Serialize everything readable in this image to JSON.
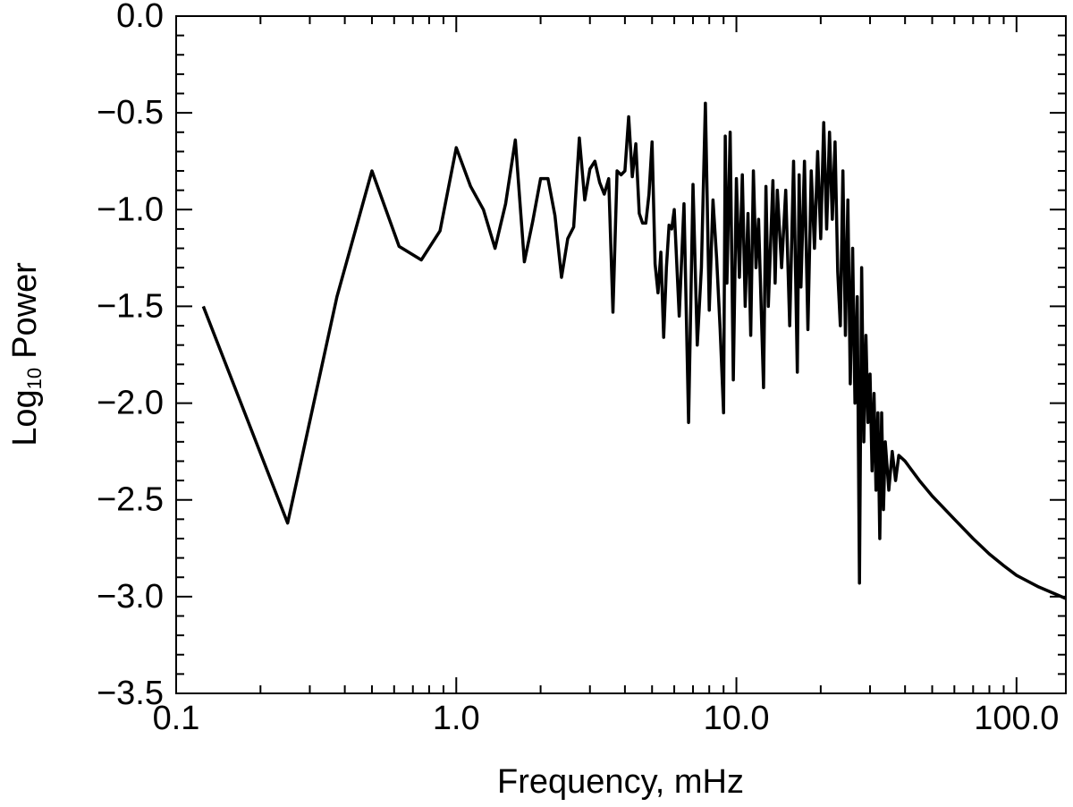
{
  "chart_data": {
    "type": "line",
    "xlabel": "Frequency, mHz",
    "ylabel": {
      "base": "Log",
      "subscript": "10",
      "text": "Power"
    },
    "xscale": "log",
    "xlim": [
      0.1,
      150
    ],
    "ylim": [
      -3.5,
      0
    ],
    "xticks": [
      0.1,
      {
        "value": 1,
        "label": "1.0"
      },
      {
        "value": 10,
        "label": "10.0"
      },
      {
        "value": 100,
        "label": "100.0"
      }
    ],
    "yticks": [
      {
        "value": -3.5,
        "label": "−3.5"
      },
      {
        "value": -3,
        "label": "−3.0"
      },
      {
        "value": -2.5,
        "label": "−2.5"
      },
      {
        "value": -2,
        "label": "−2.0"
      },
      {
        "value": -1.5,
        "label": "−1.5"
      },
      {
        "value": -1,
        "label": "−1.0"
      },
      {
        "value": -0.5,
        "label": "−0.5"
      },
      {
        "value": 0,
        "label": "0.0"
      }
    ],
    "color": "#000000",
    "x": [
      0.125,
      0.25,
      0.375,
      0.5,
      0.625,
      0.75,
      0.875,
      1.0,
      1.125,
      1.25,
      1.375,
      1.5,
      1.625,
      1.75,
      1.875,
      2.0,
      2.125,
      2.25,
      2.375,
      2.5,
      2.625,
      2.75,
      2.875,
      3.0,
      3.125,
      3.25,
      3.375,
      3.5,
      3.625,
      3.75,
      3.875,
      4.0,
      4.125,
      4.25,
      4.375,
      4.5,
      4.625,
      4.75,
      4.875,
      5.0,
      5.125,
      5.25,
      5.375,
      5.5,
      5.625,
      5.75,
      5.875,
      6.0,
      6.25,
      6.5,
      6.75,
      7.0,
      7.25,
      7.5,
      7.75,
      8.0,
      8.25,
      8.5,
      8.75,
      9.0,
      9.125,
      9.25,
      9.5,
      9.75,
      10.0,
      10.25,
      10.5,
      10.75,
      11.0,
      11.25,
      11.5,
      11.75,
      12.0,
      12.5,
      12.75,
      13.0,
      13.5,
      13.75,
      14.0,
      14.5,
      15.0,
      15.5,
      16.0,
      16.5,
      16.75,
      17.0,
      17.5,
      18.0,
      18.5,
      19.0,
      19.5,
      20.0,
      20.5,
      21.0,
      21.5,
      22.0,
      22.5,
      23.0,
      23.5,
      24.0,
      24.5,
      25.0,
      25.5,
      26.0,
      26.5,
      27.0,
      27.5,
      28.0,
      28.5,
      29.0,
      29.5,
      30.0,
      30.5,
      31.0,
      31.5,
      32.0,
      32.5,
      33.0,
      33.5,
      34.0,
      35.0,
      36.0,
      37.0,
      38.0,
      40.0,
      45.0,
      50.0,
      60.0,
      70.0,
      80.0,
      90.0,
      100.0,
      120.0,
      150.0
    ],
    "values": [
      -1.5,
      -2.62,
      -1.45,
      -0.8,
      -1.19,
      -1.26,
      -1.11,
      -0.68,
      -0.88,
      -1.0,
      -1.2,
      -0.97,
      -0.64,
      -1.27,
      -1.06,
      -0.84,
      -0.84,
      -1.03,
      -1.35,
      -1.15,
      -1.09,
      -0.63,
      -0.95,
      -0.79,
      -0.75,
      -0.86,
      -0.92,
      -0.84,
      -1.53,
      -0.8,
      -0.82,
      -0.8,
      -0.52,
      -0.83,
      -0.66,
      -1.02,
      -1.07,
      -1.07,
      -0.92,
      -0.65,
      -1.28,
      -1.43,
      -1.22,
      -1.66,
      -1.3,
      -1.08,
      -1.1,
      -1.0,
      -1.55,
      -0.97,
      -2.1,
      -0.87,
      -1.7,
      -1.3,
      -0.45,
      -1.52,
      -0.95,
      -1.25,
      -1.62,
      -2.05,
      -0.62,
      -1.38,
      -0.6,
      -1.88,
      -0.84,
      -1.35,
      -0.82,
      -1.5,
      -1.02,
      -1.65,
      -0.8,
      -1.3,
      -1.05,
      -1.92,
      -0.88,
      -1.5,
      -0.85,
      -1.38,
      -0.9,
      -1.3,
      -0.9,
      -1.6,
      -0.75,
      -1.84,
      -0.82,
      -1.4,
      -0.75,
      -1.62,
      -0.8,
      -1.2,
      -0.7,
      -1.15,
      -0.55,
      -1.1,
      -0.6,
      -1.05,
      -0.65,
      -1.32,
      -1.6,
      -0.8,
      -1.65,
      -0.95,
      -1.9,
      -1.2,
      -2.0,
      -1.45,
      -2.93,
      -1.3,
      -2.2,
      -1.65,
      -2.1,
      -1.85,
      -2.35,
      -1.95,
      -2.45,
      -2.05,
      -2.7,
      -2.05,
      -2.55,
      -2.2,
      -2.45,
      -2.25,
      -2.4,
      -2.27,
      -2.3,
      -2.4,
      -2.48,
      -2.6,
      -2.7,
      -2.78,
      -2.84,
      -2.89,
      -2.95,
      -3.01
    ]
  }
}
